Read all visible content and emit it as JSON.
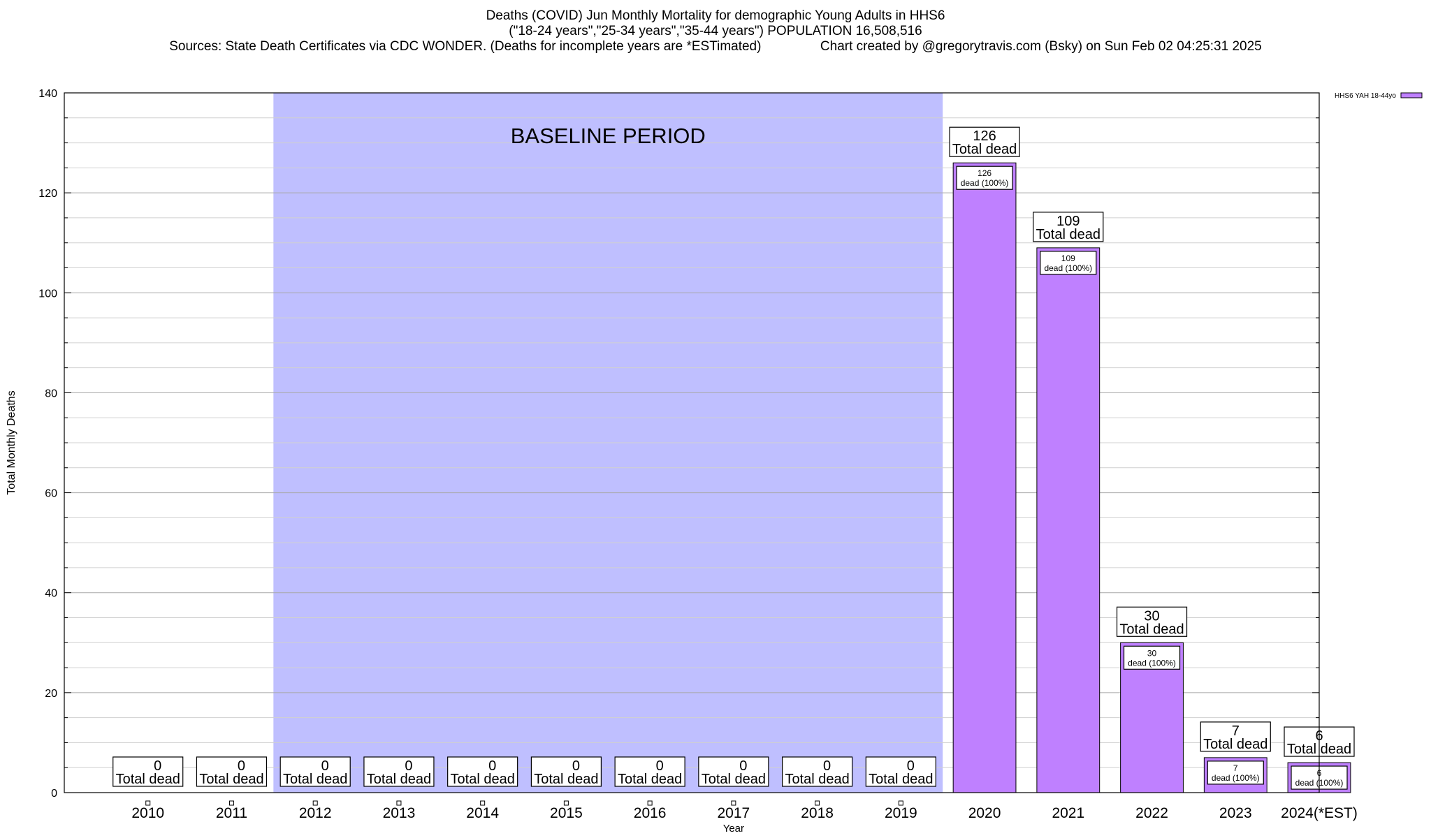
{
  "titles": {
    "line1": "Deaths (COVID) Jun Monthly Mortality for demographic Young Adults in HHS6",
    "line2": "(\"18-24 years\",\"25-34 years\",\"35-44 years\") POPULATION 16,508,516",
    "line3": "Sources: State Death Certificates via CDC WONDER. (Deaths for incomplete years are *ESTimated)                Chart created by @gregorytravis.com (Bsky) on Sun Feb 02 04:25:31 2025"
  },
  "chart_data": {
    "type": "bar",
    "title": "Deaths (COVID) Jun Monthly Mortality for demographic Young Adults in HHS6",
    "xlabel": "Year",
    "ylabel": "Total Monthly Deaths",
    "categories": [
      "2010",
      "2011",
      "2012",
      "2013",
      "2014",
      "2015",
      "2016",
      "2017",
      "2018",
      "2019",
      "2020",
      "2021",
      "2022",
      "2023",
      "2024(*EST)"
    ],
    "series": [
      {
        "name": "HHS6 YAH 18-44yo",
        "values": [
          0,
          0,
          0,
          0,
          0,
          0,
          0,
          0,
          0,
          0,
          126,
          109,
          30,
          7,
          6
        ],
        "color": "#bf80ff"
      }
    ],
    "ylim": [
      0,
      140
    ],
    "yticks": [
      0,
      20,
      40,
      60,
      80,
      100,
      120,
      140
    ],
    "grid": true,
    "legend_position": "top-right",
    "total_label": "Total dead",
    "inner_label_suffix": "dead (100%)",
    "baseline": {
      "label": "BASELINE PERIOD",
      "from": "2012",
      "to": "2019",
      "color": "#bfbfff"
    }
  }
}
